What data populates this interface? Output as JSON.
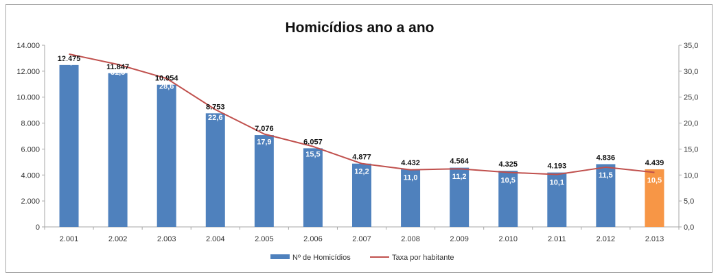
{
  "chart_data": {
    "type": "bar",
    "title": "Homicídios ano a ano",
    "categories": [
      "2.001",
      "2.002",
      "2.003",
      "2.004",
      "2.005",
      "2.006",
      "2.007",
      "2.008",
      "2.009",
      "2.010",
      "2.011",
      "2.012",
      "2.013"
    ],
    "series": [
      {
        "name": "Nº de Homicídios",
        "type": "bar",
        "axis": "left",
        "values": [
          12475,
          11847,
          10954,
          8753,
          7076,
          6057,
          4877,
          4432,
          4564,
          4325,
          4193,
          4836,
          4439
        ],
        "labels": [
          "12.475",
          "11.847",
          "10.954",
          "8.753",
          "7.076",
          "6.057",
          "4.877",
          "4.432",
          "4.564",
          "4.325",
          "4.193",
          "4.836",
          "4.439"
        ]
      },
      {
        "name": "Taxa por habitante",
        "type": "line",
        "axis": "right",
        "values": [
          33.3,
          31.3,
          28.6,
          22.6,
          17.9,
          15.5,
          12.2,
          11.0,
          11.2,
          10.5,
          10.1,
          11.5,
          10.5
        ],
        "labels": [
          "33,3",
          "31,3",
          "28,6",
          "22,6",
          "17,9",
          "15,5",
          "12,2",
          "11,0",
          "11,2",
          "10,5",
          "10,1",
          "11,5",
          "10,5"
        ]
      }
    ],
    "y_left": {
      "lim": [
        0,
        14000
      ],
      "ticks": [
        "0",
        "2.000",
        "4.000",
        "6.000",
        "8.000",
        "10.000",
        "12.000",
        "14.000"
      ]
    },
    "y_right": {
      "lim": [
        0,
        35
      ],
      "ticks": [
        "0,0",
        "5,0",
        "10,0",
        "15,0",
        "20,0",
        "25,0",
        "30,0",
        "35,0"
      ]
    },
    "colors": {
      "bar": "#4f81bd",
      "bar_highlight": "#f79646",
      "line": "#c0504d",
      "axis": "#a6a6a6"
    },
    "highlight_index": 12,
    "grid": false,
    "legend_position": "bottom"
  }
}
